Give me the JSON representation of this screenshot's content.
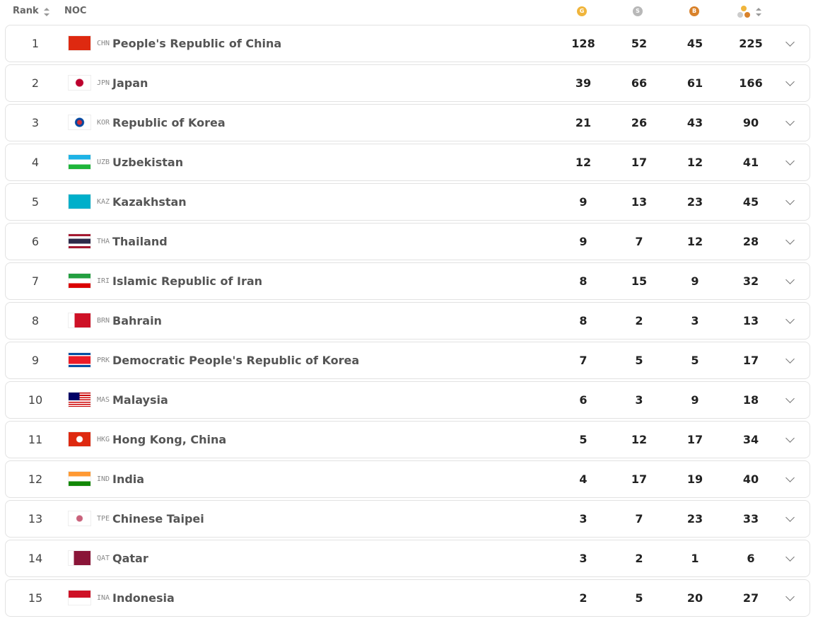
{
  "header": {
    "rank": "Rank",
    "noc": "NOC",
    "gold": "G",
    "silver": "S",
    "bronze": "B"
  },
  "rows": [
    {
      "rank": 1,
      "code": "CHN",
      "name": "People's Republic of China",
      "gold": 128,
      "silver": 52,
      "bronze": 45,
      "total": 225
    },
    {
      "rank": 2,
      "code": "JPN",
      "name": "Japan",
      "gold": 39,
      "silver": 66,
      "bronze": 61,
      "total": 166
    },
    {
      "rank": 3,
      "code": "KOR",
      "name": "Republic of Korea",
      "gold": 21,
      "silver": 26,
      "bronze": 43,
      "total": 90
    },
    {
      "rank": 4,
      "code": "UZB",
      "name": "Uzbekistan",
      "gold": 12,
      "silver": 17,
      "bronze": 12,
      "total": 41
    },
    {
      "rank": 5,
      "code": "KAZ",
      "name": "Kazakhstan",
      "gold": 9,
      "silver": 13,
      "bronze": 23,
      "total": 45
    },
    {
      "rank": 6,
      "code": "THA",
      "name": "Thailand",
      "gold": 9,
      "silver": 7,
      "bronze": 12,
      "total": 28
    },
    {
      "rank": 7,
      "code": "IRI",
      "name": "Islamic Republic of Iran",
      "gold": 8,
      "silver": 15,
      "bronze": 9,
      "total": 32
    },
    {
      "rank": 8,
      "code": "BRN",
      "name": "Bahrain",
      "gold": 8,
      "silver": 2,
      "bronze": 3,
      "total": 13
    },
    {
      "rank": 9,
      "code": "PRK",
      "name": "Democratic People's Republic of Korea",
      "gold": 7,
      "silver": 5,
      "bronze": 5,
      "total": 17
    },
    {
      "rank": 10,
      "code": "MAS",
      "name": "Malaysia",
      "gold": 6,
      "silver": 3,
      "bronze": 9,
      "total": 18
    },
    {
      "rank": 11,
      "code": "HKG",
      "name": "Hong Kong, China",
      "gold": 5,
      "silver": 12,
      "bronze": 17,
      "total": 34
    },
    {
      "rank": 12,
      "code": "IND",
      "name": "India",
      "gold": 4,
      "silver": 17,
      "bronze": 19,
      "total": 40
    },
    {
      "rank": 13,
      "code": "TPE",
      "name": "Chinese Taipei",
      "gold": 3,
      "silver": 7,
      "bronze": 23,
      "total": 33
    },
    {
      "rank": 14,
      "code": "QAT",
      "name": "Qatar",
      "gold": 3,
      "silver": 2,
      "bronze": 1,
      "total": 6
    },
    {
      "rank": 15,
      "code": "INA",
      "name": "Indonesia",
      "gold": 2,
      "silver": 5,
      "bronze": 20,
      "total": 27
    }
  ]
}
